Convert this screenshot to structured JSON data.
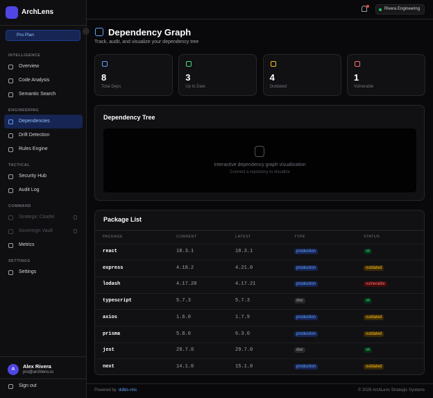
{
  "sidebar": {
    "brand": "ArchLens",
    "plan": "Pro Plan",
    "sections": [
      {
        "title": "INTELLIGENCE",
        "items": [
          "Overview",
          "Code Analysis",
          "Semantic Search"
        ]
      },
      {
        "title": "ENGINEERING",
        "items": [
          "Dependencies",
          "Drift Detection",
          "Rules Engine"
        ]
      },
      {
        "title": "TACTICAL",
        "items": [
          "Security Hub",
          "Audit Log"
        ]
      },
      {
        "title": "COMMAND",
        "items": [
          "Strategic Citadel",
          "Sovereign Vault",
          "Metrics"
        ]
      },
      {
        "title": "SETTINGS",
        "items": [
          "Settings"
        ]
      }
    ],
    "user": {
      "initial": "A",
      "name": "Alex Rivera",
      "email": "pro@archlens.io"
    },
    "sign_out": "Sign out"
  },
  "header": {
    "org": "Rivera Engineering"
  },
  "page": {
    "title": "Dependency Graph",
    "subtitle": "Track, audit, and visualize your dependency tree"
  },
  "stats": [
    {
      "value": 8,
      "label": "Total Deps"
    },
    {
      "value": 3,
      "label": "Up to Date"
    },
    {
      "value": 4,
      "label": "Outdated"
    },
    {
      "value": 1,
      "label": "Vulnerable"
    }
  ],
  "tree": {
    "title": "Dependency Tree",
    "placeholder": "Interactive dependency graph visualization",
    "hint": "Connect a repository to visualize"
  },
  "table": {
    "title": "Package List",
    "columns": [
      "PACKAGE",
      "CURRENT",
      "LATEST",
      "TYPE",
      "STATUS"
    ],
    "rows": [
      [
        "react",
        "18.3.1",
        "18.3.1",
        "production",
        "ok"
      ],
      [
        "express",
        "4.18.2",
        "4.21.0",
        "production",
        "outdated"
      ],
      [
        "lodash",
        "4.17.20",
        "4.17.21",
        "production",
        "vulnerable"
      ],
      [
        "typescript",
        "5.7.3",
        "5.7.3",
        "dev",
        "ok"
      ],
      [
        "axios",
        "1.6.0",
        "1.7.9",
        "production",
        "outdated"
      ],
      [
        "prisma",
        "5.8.0",
        "6.3.0",
        "production",
        "outdated"
      ],
      [
        "jest",
        "29.7.0",
        "29.7.0",
        "dev",
        "ok"
      ],
      [
        "next",
        "14.1.0",
        "15.1.0",
        "production",
        "outdated"
      ]
    ]
  },
  "footer": {
    "powered": "Powered by",
    "link": "ddbis-rmc",
    "copyright": "© 2026 ArchLens Strategic Systems"
  }
}
